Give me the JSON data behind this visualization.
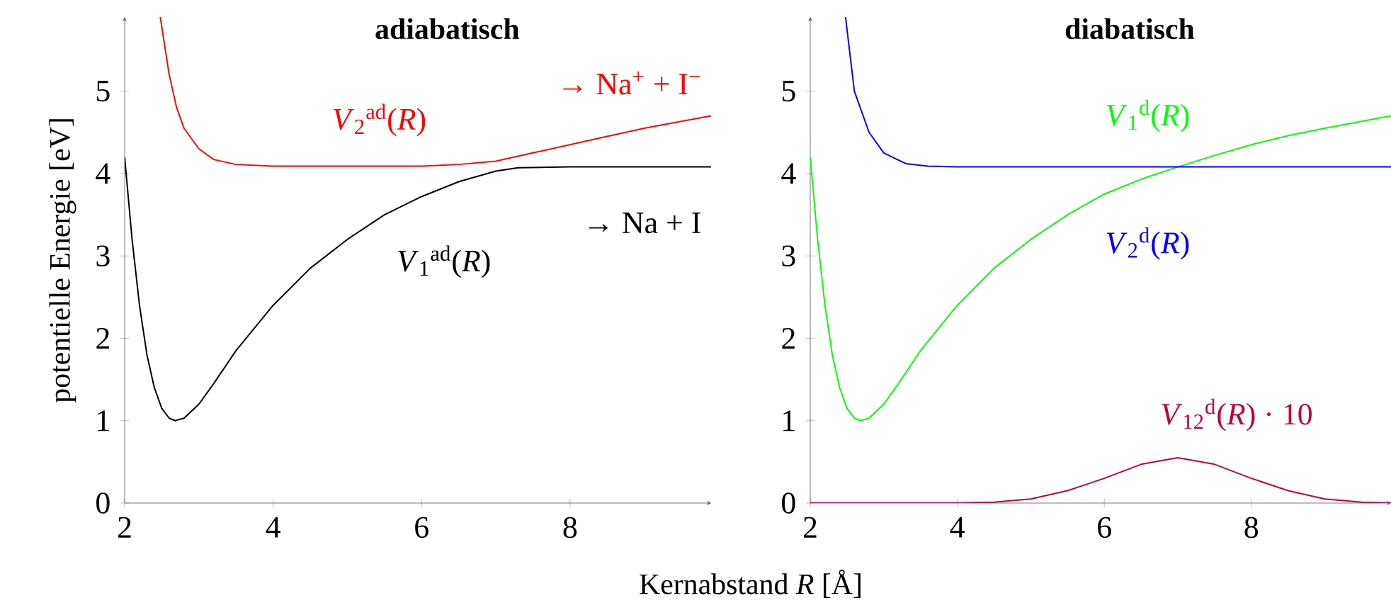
{
  "chart_data": [
    {
      "type": "line",
      "title": "adiabatisch",
      "xlabel": "Kernabstand *R* [Å]",
      "ylabel": "potentielle Energie [eV]",
      "xlim": [
        2,
        9.9
      ],
      "ylim": [
        0,
        5.9
      ],
      "xticks": [
        2,
        4,
        6,
        8
      ],
      "yticks": [
        0,
        1,
        2,
        3,
        4,
        5
      ],
      "grid": false,
      "marker": "none",
      "line_style": "solid",
      "series": [
        {
          "name": "*V*$_{1}$$^{ad}$(*R*)",
          "color": "#000000",
          "x": [
            2.0,
            2.1,
            2.2,
            2.3,
            2.4,
            2.5,
            2.6,
            2.68,
            2.8,
            3.0,
            3.2,
            3.5,
            4.0,
            4.5,
            5.0,
            5.5,
            6.0,
            6.5,
            7.0,
            7.3,
            8.0,
            9.9
          ],
          "values": [
            4.2,
            3.2,
            2.4,
            1.8,
            1.4,
            1.15,
            1.03,
            1.0,
            1.03,
            1.2,
            1.45,
            1.85,
            2.4,
            2.85,
            3.2,
            3.5,
            3.72,
            3.9,
            4.03,
            4.07,
            4.08,
            4.08
          ]
        },
        {
          "name": "*V*$_{2}$$^{ad}$(*R*)",
          "color": "#ff0000",
          "x": [
            2.48,
            2.6,
            2.7,
            2.8,
            3.0,
            3.2,
            3.5,
            4.0,
            6.0,
            6.5,
            7.0,
            7.5,
            8.0,
            8.5,
            9.0,
            9.9
          ],
          "values": [
            5.9,
            5.2,
            4.8,
            4.55,
            4.3,
            4.17,
            4.11,
            4.09,
            4.09,
            4.11,
            4.15,
            4.25,
            4.35,
            4.45,
            4.55,
            4.7
          ]
        }
      ],
      "annotations": [
        "→ Na$^{+}$ + I$^{−}$",
        "→ Na + I"
      ]
    },
    {
      "type": "line",
      "title": "diabatisch",
      "xlim": [
        2,
        9.9
      ],
      "ylim": [
        0,
        5.9
      ],
      "xticks": [
        2,
        4,
        6,
        8
      ],
      "yticks": [
        0,
        1,
        2,
        3,
        4,
        5
      ],
      "grid": false,
      "marker": "none",
      "line_style": "solid",
      "series": [
        {
          "name": "*V*$_{1}$$^{d}$(*R*)",
          "color": "#00ff00",
          "x": [
            2.0,
            2.1,
            2.2,
            2.3,
            2.4,
            2.5,
            2.6,
            2.68,
            2.8,
            3.0,
            3.2,
            3.5,
            4.0,
            4.5,
            5.0,
            5.5,
            6.0,
            6.5,
            7.0,
            7.5,
            8.0,
            8.5,
            9.0,
            9.9
          ],
          "values": [
            4.2,
            3.2,
            2.4,
            1.8,
            1.4,
            1.15,
            1.03,
            1.0,
            1.03,
            1.2,
            1.45,
            1.85,
            2.4,
            2.85,
            3.2,
            3.5,
            3.75,
            3.93,
            4.08,
            4.22,
            4.35,
            4.46,
            4.55,
            4.7
          ]
        },
        {
          "name": "*V*$_{2}$$^{d}$(*R*)",
          "color": "#0000ff",
          "x": [
            2.48,
            2.6,
            2.8,
            3.0,
            3.3,
            3.6,
            4.0,
            9.9
          ],
          "values": [
            5.9,
            5.0,
            4.5,
            4.25,
            4.12,
            4.09,
            4.08,
            4.08
          ]
        },
        {
          "name": "*V*$_{12}$$^{d}$(*R*) · 10",
          "color": "#c00040",
          "x": [
            2.0,
            4.0,
            4.5,
            5.0,
            5.5,
            6.0,
            6.5,
            7.0,
            7.5,
            8.0,
            8.5,
            9.0,
            9.5,
            9.9
          ],
          "values": [
            0,
            0,
            0.01,
            0.05,
            0.15,
            0.3,
            0.47,
            0.55,
            0.47,
            0.3,
            0.15,
            0.05,
            0.01,
            0
          ]
        }
      ]
    }
  ]
}
